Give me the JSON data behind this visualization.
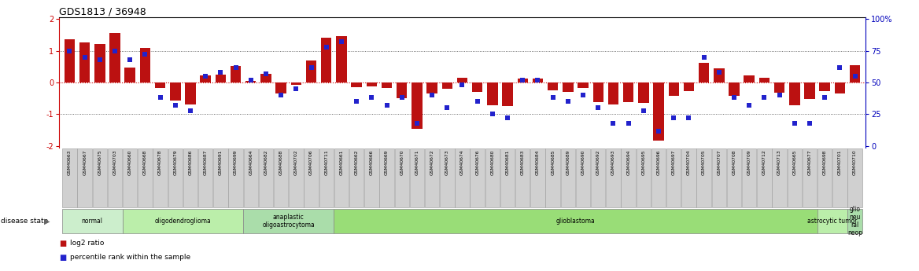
{
  "title": "GDS1813 / 36948",
  "samples": [
    "GSM40663",
    "GSM40667",
    "GSM40675",
    "GSM40703",
    "GSM40660",
    "GSM40668",
    "GSM40678",
    "GSM40679",
    "GSM40686",
    "GSM40687",
    "GSM40691",
    "GSM40699",
    "GSM40664",
    "GSM40682",
    "GSM40688",
    "GSM40702",
    "GSM40706",
    "GSM40711",
    "GSM40661",
    "GSM40662",
    "GSM40666",
    "GSM40669",
    "GSM40670",
    "GSM40671",
    "GSM40672",
    "GSM40673",
    "GSM40674",
    "GSM40676",
    "GSM40680",
    "GSM40681",
    "GSM40683",
    "GSM40684",
    "GSM40685",
    "GSM40689",
    "GSM40690",
    "GSM40692",
    "GSM40693",
    "GSM40694",
    "GSM40695",
    "GSM40696",
    "GSM40697",
    "GSM40704",
    "GSM40705",
    "GSM40707",
    "GSM40708",
    "GSM40709",
    "GSM40712",
    "GSM40713",
    "GSM40665",
    "GSM40677",
    "GSM40698",
    "GSM40701",
    "GSM40710"
  ],
  "log2_ratio": [
    1.35,
    1.25,
    1.2,
    1.55,
    0.47,
    1.08,
    -0.18,
    -0.58,
    -0.68,
    0.22,
    0.25,
    0.52,
    0.05,
    0.28,
    -0.35,
    -0.08,
    0.68,
    1.42,
    1.45,
    -0.15,
    -0.12,
    -0.18,
    -0.5,
    -1.45,
    -0.35,
    -0.2,
    0.14,
    -0.3,
    -0.72,
    -0.75,
    0.12,
    0.12,
    -0.25,
    -0.3,
    -0.18,
    -0.62,
    -0.68,
    -0.62,
    -0.65,
    -1.82,
    -0.42,
    -0.28,
    0.62,
    0.45,
    -0.42,
    0.22,
    0.15,
    -0.32,
    -0.72,
    -0.52,
    -0.28,
    -0.35,
    0.55
  ],
  "percentile": [
    75,
    70,
    68,
    75,
    68,
    72,
    38,
    32,
    28,
    55,
    58,
    62,
    52,
    57,
    40,
    45,
    62,
    78,
    82,
    35,
    38,
    32,
    38,
    18,
    40,
    30,
    48,
    35,
    25,
    22,
    52,
    52,
    38,
    35,
    40,
    30,
    18,
    18,
    28,
    12,
    22,
    22,
    70,
    58,
    38,
    32,
    38,
    40,
    18,
    18,
    38,
    62,
    55
  ],
  "disease_groups": [
    {
      "label": "normal",
      "start": 0,
      "end": 4,
      "color": "#cceecc"
    },
    {
      "label": "oligodendroglioma",
      "start": 4,
      "end": 12,
      "color": "#bbeeaa"
    },
    {
      "label": "anaplastic\noligoastrocytoma",
      "start": 12,
      "end": 18,
      "color": "#aaddaa"
    },
    {
      "label": "glioblastoma",
      "start": 18,
      "end": 50,
      "color": "#99dd77"
    },
    {
      "label": "astrocytic tumor",
      "start": 50,
      "end": 52,
      "color": "#bbeeaa"
    },
    {
      "label": "glio\nneu\nral\nneop",
      "start": 52,
      "end": 53,
      "color": "#aaddaa"
    }
  ],
  "bar_color": "#bb1111",
  "dot_color": "#2222cc",
  "left_axis_color": "#cc0000",
  "right_axis_color": "#0000bb",
  "zero_line_color": "#cc0000",
  "dotted_line_color": "#444444"
}
